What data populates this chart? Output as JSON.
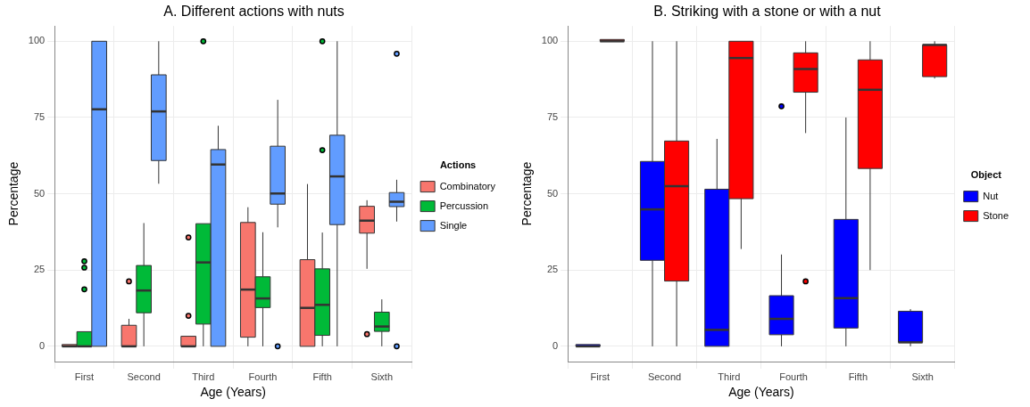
{
  "chart_data": [
    {
      "type": "box",
      "title": "A. Different actions with nuts",
      "xlabel": "Age (Years)",
      "ylabel": "Percentage",
      "legend_title": "Actions",
      "legend": "right",
      "grid": true,
      "ylim": [
        -5,
        105
      ],
      "yticks": [
        0,
        25,
        50,
        75,
        100
      ],
      "categories": [
        "First",
        "Second",
        "Third",
        "Fourth",
        "Fifth",
        "Sixth"
      ],
      "series": [
        {
          "name": "Combinatory",
          "color": "#f8766d",
          "boxes": [
            {
              "low": 0,
              "q1": 0,
              "median": 0,
              "q3": 0,
              "high": 0
            },
            {
              "low": 0,
              "q1": 0,
              "median": 0,
              "q3": 6.9,
              "high": 9,
              "outliers": [
                21.3
              ]
            },
            {
              "low": 0,
              "q1": 0,
              "median": 0,
              "q3": 3.3,
              "high": 3.3,
              "outliers": [
                35.7,
                10
              ]
            },
            {
              "low": 0,
              "q1": 3,
              "median": 18.6,
              "q3": 40.6,
              "high": 45.6
            },
            {
              "low": 0,
              "q1": 0,
              "median": 12.6,
              "q3": 28.4,
              "high": 53.2
            },
            {
              "low": 25.4,
              "q1": 37.1,
              "median": 41.2,
              "q3": 45.9,
              "high": 47.9,
              "outliers": [
                4
              ]
            }
          ]
        },
        {
          "name": "Percussion",
          "color": "#00ba38",
          "boxes": [
            {
              "low": 0,
              "q1": 0,
              "median": 0,
              "q3": 4.8,
              "high": 4.8,
              "outliers": [
                27.9,
                25.8,
                18.7
              ]
            },
            {
              "low": 0,
              "q1": 11,
              "median": 18.3,
              "q3": 26.5,
              "high": 40.4
            },
            {
              "low": 0,
              "q1": 7.3,
              "median": 27.5,
              "q3": 40.2,
              "high": 40.2,
              "outliers": [
                100
              ]
            },
            {
              "low": 0,
              "q1": 12.7,
              "median": 15.7,
              "q3": 22.8,
              "high": 37.4
            },
            {
              "low": 0,
              "q1": 3.6,
              "median": 13.6,
              "q3": 25.4,
              "high": 37.3,
              "outliers": [
                64.3,
                100
              ]
            },
            {
              "low": 0,
              "q1": 4.9,
              "median": 6.5,
              "q3": 11.2,
              "high": 15.4
            }
          ]
        },
        {
          "name": "Single",
          "color": "#619cff",
          "boxes": [
            {
              "low": 0,
              "q1": 0,
              "median": 77.7,
              "q3": 100,
              "high": 100
            },
            {
              "low": 53.3,
              "q1": 60.9,
              "median": 77,
              "q3": 89,
              "high": 100
            },
            {
              "low": 0,
              "q1": 0,
              "median": 59.6,
              "q3": 64.5,
              "high": 72.3
            },
            {
              "low": 39,
              "q1": 46.6,
              "median": 50.1,
              "q3": 65.6,
              "high": 80.8,
              "outliers": [
                0
              ]
            },
            {
              "low": 0,
              "q1": 39.9,
              "median": 55.7,
              "q3": 69.2,
              "high": 100
            },
            {
              "low": 40.9,
              "q1": 45.8,
              "median": 47.4,
              "q3": 50.4,
              "high": 54.6,
              "outliers": [
                0,
                95.9
              ]
            }
          ]
        }
      ]
    },
    {
      "type": "box",
      "title": "B. Striking with a stone or with a nut",
      "xlabel": "Age (Years)",
      "ylabel": "Percentage",
      "legend_title": "Object",
      "legend": "right",
      "grid": true,
      "ylim": [
        -5,
        105
      ],
      "yticks": [
        0,
        25,
        50,
        75,
        100
      ],
      "categories": [
        "First",
        "Second",
        "Third",
        "Fourth",
        "Fifth",
        "Sixth"
      ],
      "series": [
        {
          "name": "Nut",
          "color": "#0000ff",
          "boxes": [
            {
              "low": 0,
              "q1": 0,
              "median": 0,
              "q3": 0,
              "high": 0
            },
            {
              "low": 0,
              "q1": 28.2,
              "median": 44.9,
              "q3": 60.6,
              "high": 100
            },
            {
              "low": 0,
              "q1": 0,
              "median": 5.4,
              "q3": 51.5,
              "high": 68
            },
            {
              "low": 0,
              "q1": 3.8,
              "median": 9,
              "q3": 16.6,
              "high": 30.1,
              "outliers": [
                78.7
              ]
            },
            {
              "low": 0,
              "q1": 6,
              "median": 15.8,
              "q3": 41.6,
              "high": 75
            },
            {
              "low": 0,
              "q1": 1.3,
              "median": 1.3,
              "q3": 11.5,
              "high": 12.2
            }
          ]
        },
        {
          "name": "Stone",
          "color": "#ff0000",
          "boxes": [
            {
              "low": 100,
              "q1": 100,
              "median": 100,
              "q3": 100,
              "high": 100
            },
            {
              "low": 0,
              "q1": 21.4,
              "median": 52.5,
              "q3": 67.3,
              "high": 100
            },
            {
              "low": 31.9,
              "q1": 48.4,
              "median": 94.5,
              "q3": 100,
              "high": 100
            },
            {
              "low": 69.9,
              "q1": 83.3,
              "median": 90.9,
              "q3": 96.2,
              "high": 100,
              "outliers": [
                21.3
              ]
            },
            {
              "low": 25,
              "q1": 58.3,
              "median": 84.1,
              "q3": 93.9,
              "high": 100
            },
            {
              "low": 87.8,
              "q1": 88.4,
              "median": 98.8,
              "q3": 98.8,
              "high": 100
            }
          ]
        }
      ]
    }
  ]
}
